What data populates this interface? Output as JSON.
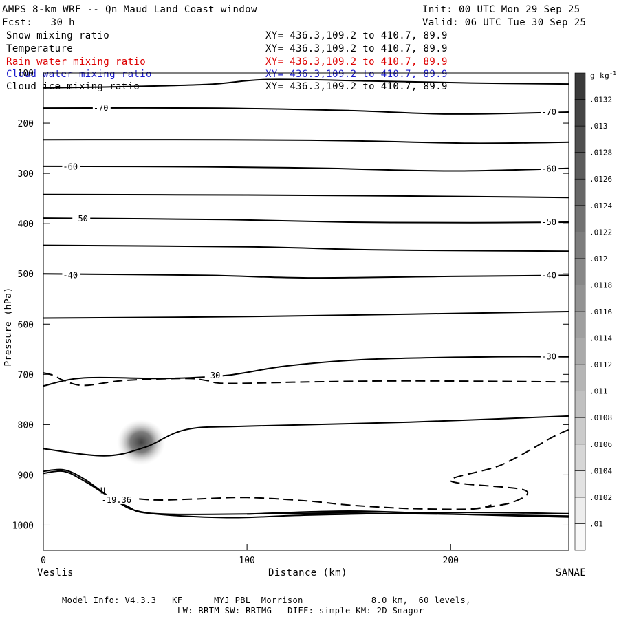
{
  "header": {
    "title": "AMPS 8-km WRF -- Qn Maud Land Coast window",
    "init": "Init: 00 UTC Mon 29 Sep 25",
    "fcst": "Fcst:   30 h",
    "valid": "Valid: 06 UTC Tue 30 Sep 25"
  },
  "fields": [
    {
      "name": "Snow mixing ratio",
      "xy": "XY= 436.3,109.2 to 410.7, 89.9",
      "color": "#000000"
    },
    {
      "name": "Temperature",
      "xy": "XY= 436.3,109.2 to 410.7, 89.9",
      "color": "#000000"
    },
    {
      "name": "Rain water mixing ratio",
      "xy": "XY= 436.3,109.2 to 410.7, 89.9",
      "color": "#dd0000"
    },
    {
      "name": "Cloud water mixing ratio",
      "xy": "XY= 436.3,109.2 to 410.7, 89.9",
      "color": "#1a1acc"
    },
    {
      "name": "Cloud ice mixing ratio",
      "xy": "XY= 436.3,109.2 to 410.7, 89.9",
      "color": "#000000"
    }
  ],
  "footer": {
    "line1": "Model Info: V4.3.3   KF      MYJ PBL  Morrison             8.0 km,  60 levels,",
    "line2": "LW: RRTM SW: RRTMG   DIFF: simple KM: 2D Smagor"
  },
  "chart_data": {
    "type": "contour",
    "ylabel": "Pressure (hPa)",
    "xlabel": "Distance (km)",
    "x_left_label": "Veslis",
    "x_right_label": "SANAE",
    "xlim": [
      0,
      258
    ],
    "ylim": [
      1050,
      100
    ],
    "x_ticks": [
      0,
      100,
      200
    ],
    "y_ticks": [
      100,
      200,
      300,
      400,
      500,
      600,
      700,
      800,
      900,
      1000
    ],
    "colorbar": {
      "unit": "g kg-1",
      "ticks": [
        ".01",
        ".0102",
        ".0104",
        ".0106",
        ".0108",
        ".011",
        ".0112",
        ".0114",
        ".0116",
        ".0118",
        ".012",
        ".0122",
        ".0124",
        ".0126",
        ".0128",
        ".013",
        ".0132"
      ]
    },
    "isotherm_labels": [
      "-70",
      "-60",
      "-50",
      "-40",
      "-30",
      "-19.36"
    ],
    "annotation": "H",
    "isotherms": [
      {
        "id": "t100",
        "style": "solid",
        "points": [
          [
            0,
            130
          ],
          [
            30,
            128
          ],
          [
            80,
            123
          ],
          [
            110,
            113
          ],
          [
            160,
            116
          ],
          [
            210,
            120
          ],
          [
            258,
            122
          ]
        ]
      },
      {
        "id": "tm70",
        "style": "solid",
        "points": [
          [
            0,
            170
          ],
          [
            80,
            170
          ],
          [
            150,
            175
          ],
          [
            200,
            182
          ],
          [
            258,
            178
          ]
        ]
      },
      {
        "id": "tm65",
        "style": "solid",
        "points": [
          [
            0,
            233
          ],
          [
            90,
            233
          ],
          [
            150,
            235
          ],
          [
            210,
            240
          ],
          [
            258,
            238
          ]
        ]
      },
      {
        "id": "tm60",
        "style": "solid",
        "points": [
          [
            0,
            286
          ],
          [
            80,
            287
          ],
          [
            140,
            290
          ],
          [
            200,
            295
          ],
          [
            258,
            290
          ]
        ]
      },
      {
        "id": "tm55",
        "style": "solid",
        "points": [
          [
            0,
            342
          ],
          [
            100,
            343
          ],
          [
            180,
            345
          ],
          [
            258,
            348
          ]
        ]
      },
      {
        "id": "tm50",
        "style": "solid",
        "points": [
          [
            0,
            389
          ],
          [
            90,
            392
          ],
          [
            150,
            397
          ],
          [
            210,
            398
          ],
          [
            258,
            397
          ]
        ]
      },
      {
        "id": "tm45",
        "style": "solid",
        "points": [
          [
            0,
            443
          ],
          [
            100,
            446
          ],
          [
            160,
            452
          ],
          [
            220,
            454
          ],
          [
            258,
            455
          ]
        ]
      },
      {
        "id": "tm40",
        "style": "solid",
        "points": [
          [
            0,
            500
          ],
          [
            80,
            503
          ],
          [
            130,
            508
          ],
          [
            200,
            505
          ],
          [
            258,
            503
          ]
        ]
      },
      {
        "id": "tm35",
        "style": "solid",
        "points": [
          [
            0,
            588
          ],
          [
            100,
            585
          ],
          [
            180,
            580
          ],
          [
            258,
            575
          ]
        ]
      },
      {
        "id": "tm30",
        "style": "solid",
        "points": [
          [
            0,
            723
          ],
          [
            20,
            707
          ],
          [
            60,
            708
          ],
          [
            90,
            702
          ],
          [
            120,
            683
          ],
          [
            160,
            670
          ],
          [
            220,
            665
          ],
          [
            258,
            665
          ]
        ]
      },
      {
        "id": "tm25",
        "style": "solid",
        "points": [
          [
            0,
            848
          ],
          [
            30,
            862
          ],
          [
            50,
            845
          ],
          [
            70,
            810
          ],
          [
            100,
            803
          ],
          [
            180,
            795
          ],
          [
            258,
            783
          ]
        ]
      },
      {
        "id": "lowA",
        "style": "solid",
        "points": [
          [
            0,
            893
          ],
          [
            10,
            890
          ],
          [
            20,
            908
          ],
          [
            35,
            950
          ],
          [
            50,
            975
          ],
          [
            90,
            985
          ],
          [
            130,
            980
          ],
          [
            200,
            975
          ],
          [
            258,
            977
          ]
        ]
      },
      {
        "id": "lowB",
        "style": "solid",
        "points": [
          [
            0,
            897
          ],
          [
            10,
            893
          ],
          [
            20,
            912
          ],
          [
            40,
            960
          ],
          [
            60,
            978
          ],
          [
            150,
            976
          ],
          [
            258,
            982
          ]
        ]
      },
      {
        "id": "lowC",
        "style": "solid",
        "points": [
          [
            100,
            978
          ],
          [
            150,
            972
          ],
          [
            200,
            978
          ],
          [
            258,
            984
          ]
        ]
      },
      {
        "id": "d1",
        "style": "dashed",
        "points": [
          [
            0,
            697
          ],
          [
            5,
            702
          ],
          [
            10,
            712
          ],
          [
            20,
            722
          ],
          [
            40,
            712
          ],
          [
            70,
            708
          ],
          [
            80,
            712
          ],
          [
            90,
            718
          ],
          [
            130,
            715
          ],
          [
            180,
            713
          ],
          [
            258,
            715
          ]
        ]
      },
      {
        "id": "d2",
        "style": "dashed",
        "points": [
          [
            40,
            945
          ],
          [
            55,
            950
          ],
          [
            75,
            948
          ],
          [
            100,
            945
          ],
          [
            130,
            952
          ],
          [
            150,
            960
          ],
          [
            180,
            967
          ],
          [
            210,
            968
          ],
          [
            220,
            960
          ]
        ]
      },
      {
        "id": "d3",
        "style": "dashed",
        "points": [
          [
            210,
            968
          ],
          [
            230,
            955
          ],
          [
            236,
            930
          ],
          [
            200,
            912
          ],
          [
            225,
            880
          ],
          [
            250,
            825
          ],
          [
            258,
            810
          ]
        ]
      }
    ],
    "snow_maximum": {
      "x_km": 48,
      "p_hPa": 835
    }
  }
}
